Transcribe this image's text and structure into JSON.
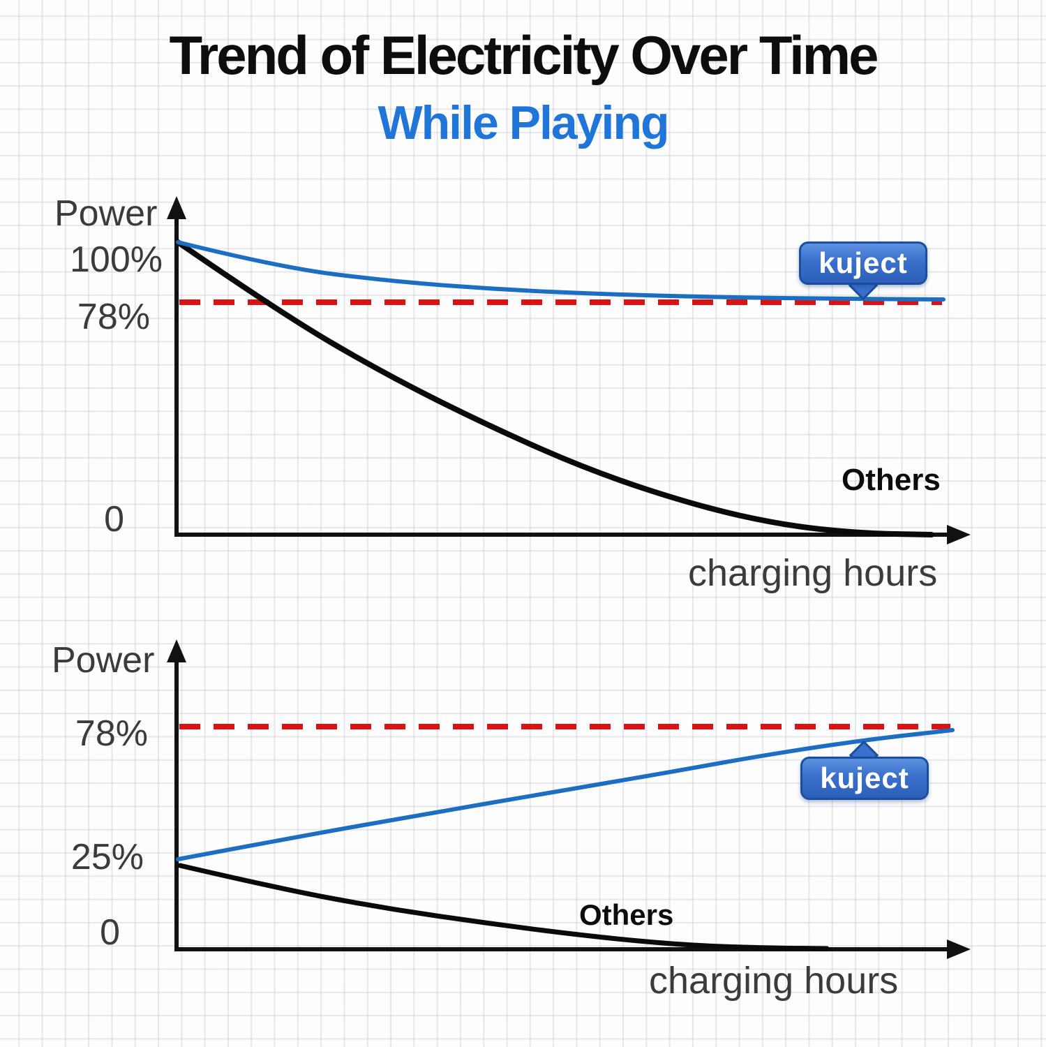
{
  "header": {
    "title": "Trend of Electricity Over Time",
    "subtitle": "While Playing"
  },
  "top_chart": {
    "ylabel": "Power",
    "xlabel": "charging hours",
    "tick_100": "100%",
    "tick_78": "78%",
    "tick_0": "0",
    "badge": "kuject",
    "others": "Others"
  },
  "bottom_chart": {
    "ylabel": "Power",
    "xlabel": "charging hours",
    "tick_78": "78%",
    "tick_25": "25%",
    "tick_0": "0",
    "badge": "kuject",
    "others": "Others"
  },
  "colors": {
    "accent_blue": "#1f76d8",
    "line_blue": "#1b6ec2",
    "line_black": "#0a0a0a",
    "dashed_red": "#dd1111",
    "badge_blue": "#3a70cc",
    "badge_border": "#1a4fa0",
    "label_gray": "#3b3b3b"
  },
  "chart_data": [
    {
      "type": "line",
      "panel": "top",
      "ylabel": "Power",
      "xlabel": "charging hours",
      "ytick_labels": [
        "100%",
        "78%",
        "0"
      ],
      "ylim": [
        0,
        100
      ],
      "x_axis": "no numeric ticks shown (normalized 0-1 playing time)",
      "x": [
        0,
        0.1,
        0.2,
        0.3,
        0.4,
        0.5,
        0.6,
        0.7,
        0.8,
        0.9,
        1.0
      ],
      "grid": "graph-paper background",
      "legend": "inline labels: blue badge 'kuject' pointing to blue curve, text 'Others' near black curve",
      "reference_line": {
        "value": 78,
        "style": "dashed",
        "color": "#dd1111"
      },
      "series": [
        {
          "name": "kuject",
          "color": "#1b6ec2",
          "values": [
            100,
            93,
            88.5,
            85.5,
            83.5,
            82.3,
            81.4,
            80.8,
            80.4,
            80.1,
            80
          ]
        },
        {
          "name": "Others",
          "color": "#0a0a0a",
          "values": [
            100,
            83,
            68,
            54,
            41,
            29,
            19,
            11,
            4,
            0.5,
            0
          ]
        }
      ]
    },
    {
      "type": "line",
      "panel": "bottom",
      "ylabel": "Power",
      "xlabel": "charging hours",
      "ytick_labels": [
        "78%",
        "25%",
        "0"
      ],
      "ylim": [
        0,
        100
      ],
      "x_axis": "no numeric ticks shown (normalized 0-1 charging time)",
      "x": [
        0,
        0.1,
        0.2,
        0.3,
        0.4,
        0.5,
        0.6,
        0.7,
        0.8,
        0.9,
        1.0
      ],
      "grid": "graph-paper background",
      "legend": "inline labels: blue badge 'kuject' pointing to blue curve, text 'Others' near black curve",
      "reference_line": {
        "value": 78,
        "style": "dashed",
        "color": "#dd1111"
      },
      "series": [
        {
          "name": "kuject",
          "color": "#1b6ec2",
          "values": [
            25,
            32,
            38.5,
            44.5,
            50,
            55,
            59.5,
            64,
            68,
            72,
            76
          ]
        },
        {
          "name": "Others",
          "color": "#0a0a0a",
          "values": [
            22,
            17,
            12.5,
            9,
            6,
            3.5,
            1.5,
            0.5,
            0,
            0,
            0
          ]
        }
      ]
    }
  ]
}
